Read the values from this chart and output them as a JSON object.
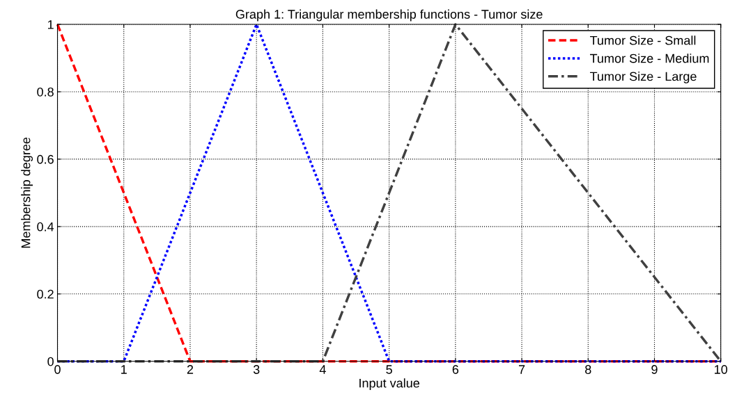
{
  "chart_data": {
    "type": "line",
    "title": "Graph 1: Triangular membership functions - Tumor size",
    "xlabel": "Input value",
    "ylabel": "Membership degree",
    "series": [
      {
        "name": "Tumor Size - Small",
        "color": "#ff0000",
        "line_style": "dashed",
        "x": [
          0,
          2,
          10
        ],
        "values": [
          1,
          0,
          0
        ]
      },
      {
        "name": "Tumor Size - Medium",
        "color": "#0000ff",
        "line_style": "dotted",
        "x": [
          0,
          1,
          3,
          5,
          10
        ],
        "values": [
          0,
          0,
          1,
          0,
          0
        ]
      },
      {
        "name": "Tumor Size - Large",
        "color": "#404040",
        "line_style": "dashdot",
        "x": [
          0,
          4,
          6,
          10
        ],
        "values": [
          0,
          0,
          1,
          0
        ]
      }
    ],
    "xlim": [
      0,
      10
    ],
    "xticks": [
      0,
      1,
      2,
      3,
      4,
      5,
      6,
      7,
      8,
      9,
      10
    ],
    "ylim": [
      0,
      1
    ],
    "yticks": [
      0,
      0.2,
      0.4,
      0.6,
      0.8,
      1
    ],
    "grid": true,
    "legend": "top right"
  }
}
